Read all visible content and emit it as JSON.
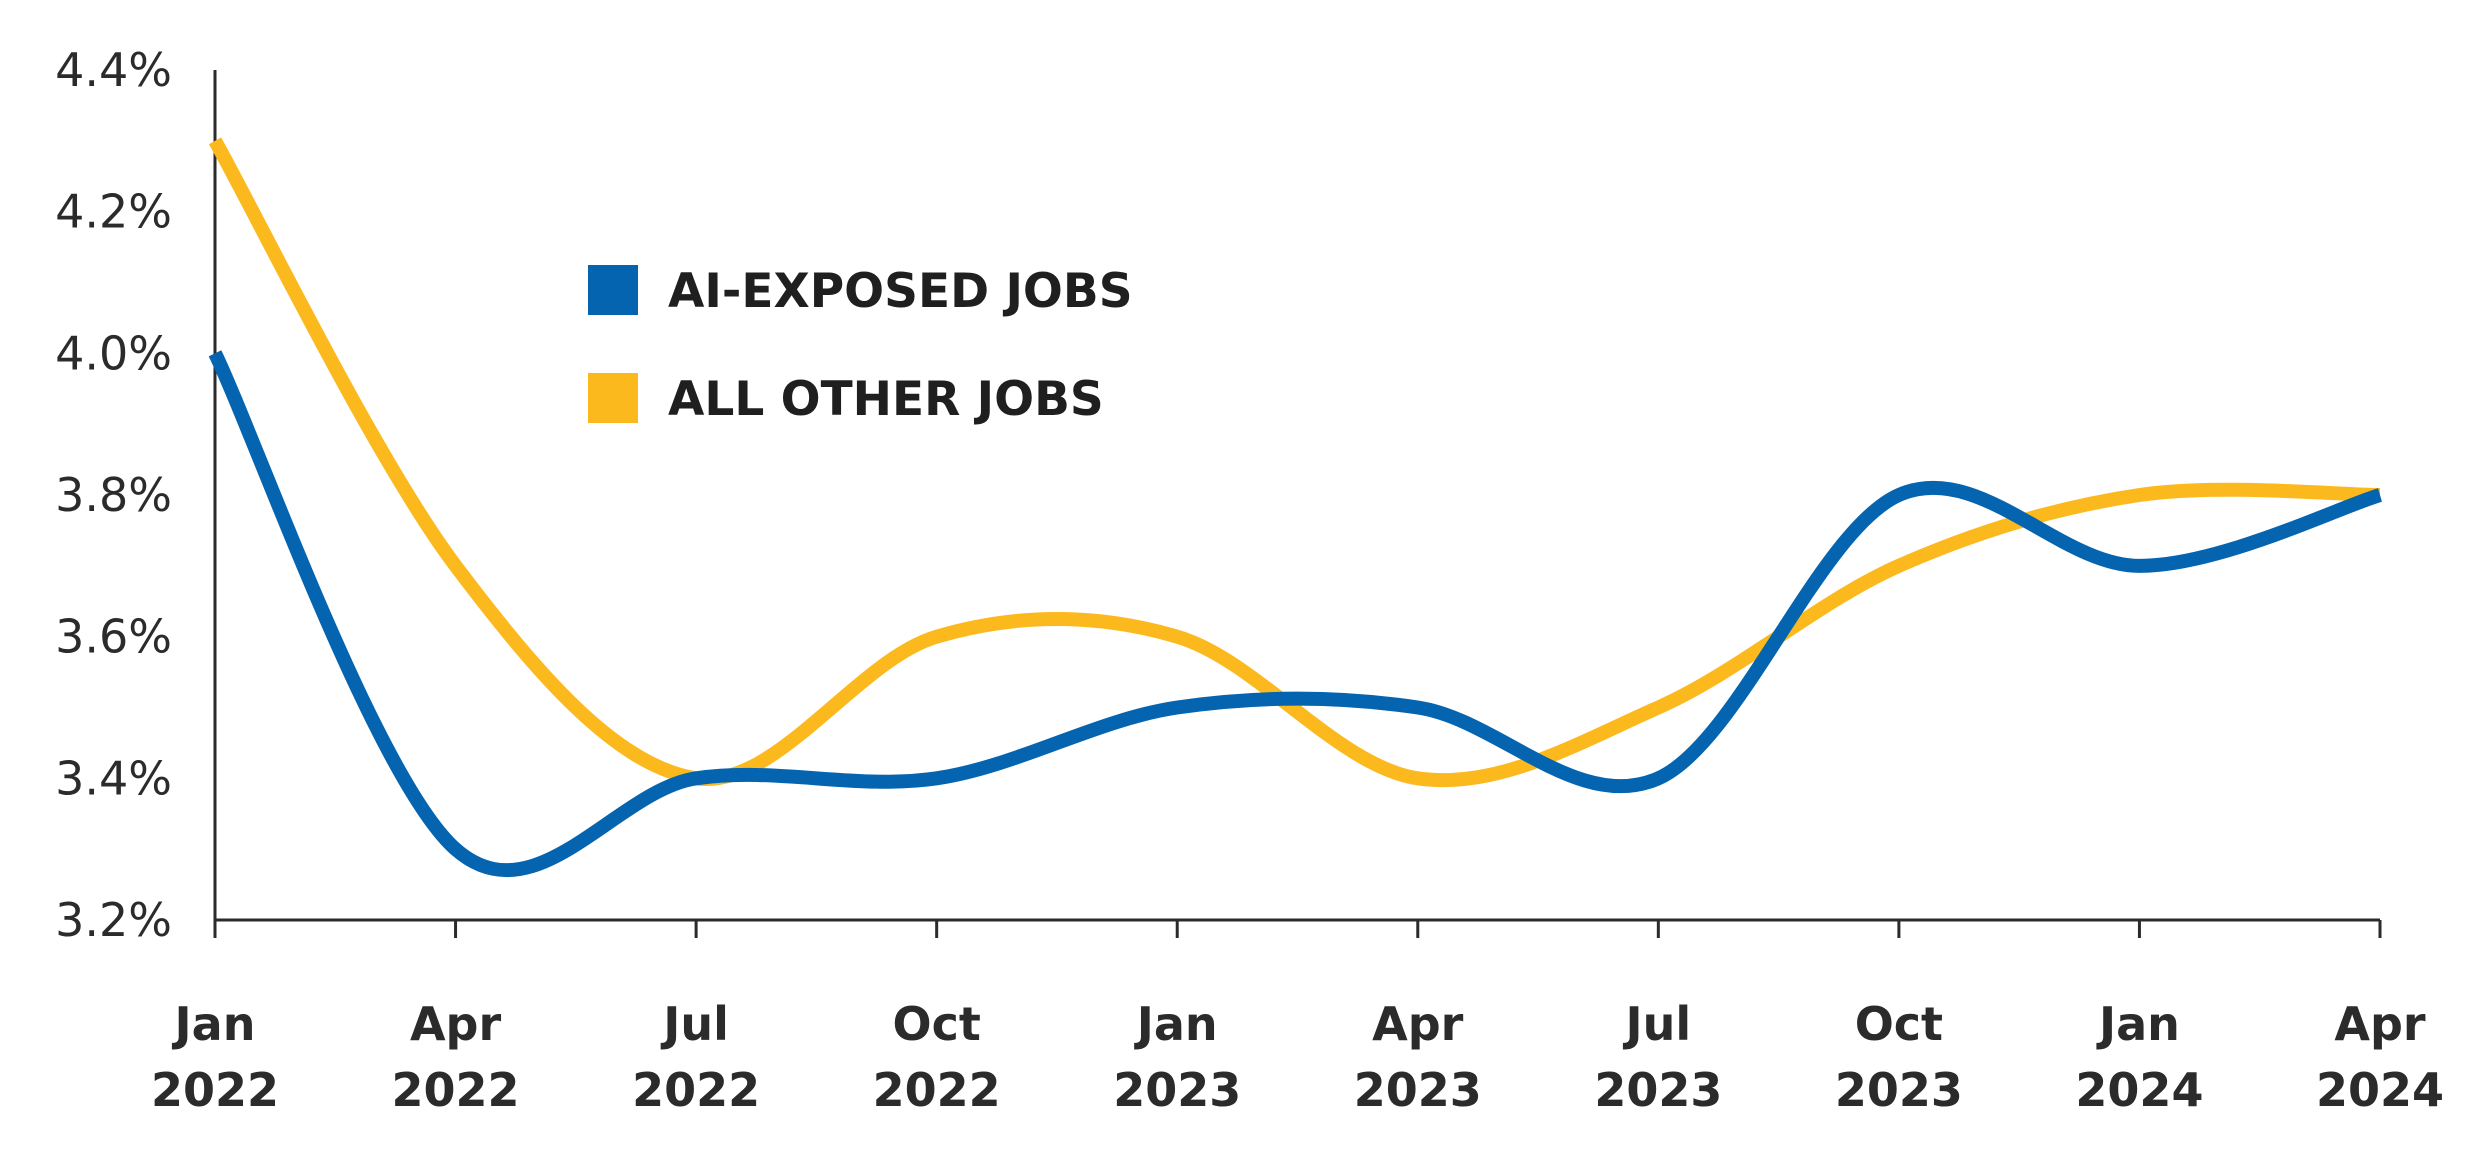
{
  "chart_data": {
    "type": "line",
    "x": [
      "Jan 2022",
      "Apr 2022",
      "Jul 2022",
      "Oct 2022",
      "Jan 2023",
      "Apr 2023",
      "Jul 2023",
      "Oct 2023",
      "Jan 2024",
      "Apr 2024"
    ],
    "x_tick_labels": [
      [
        "Jan",
        "2022"
      ],
      [
        "Apr",
        "2022"
      ],
      [
        "Jul",
        "2022"
      ],
      [
        "Oct",
        "2022"
      ],
      [
        "Jan",
        "2023"
      ],
      [
        "Apr",
        "2023"
      ],
      [
        "Jul",
        "2023"
      ],
      [
        "Oct",
        "2023"
      ],
      [
        "Jan",
        "2024"
      ],
      [
        "Apr",
        "2024"
      ]
    ],
    "series": [
      {
        "name": "AI-EXPOSED JOBS",
        "color": "#0564b0",
        "values": [
          4.0,
          3.3,
          3.4,
          3.4,
          3.5,
          3.5,
          3.4,
          3.8,
          3.7,
          3.8
        ]
      },
      {
        "name": "ALL OTHER JOBS",
        "color": "#fcb91e",
        "values": [
          4.3,
          3.7,
          3.4,
          3.6,
          3.6,
          3.4,
          3.5,
          3.7,
          3.8,
          3.8
        ]
      }
    ],
    "ylim": [
      3.2,
      4.4
    ],
    "y_ticks": [
      3.2,
      3.4,
      3.6,
      3.8,
      4.0,
      4.2,
      4.4
    ],
    "y_tick_labels": [
      "3.2%",
      "3.4%",
      "3.6%",
      "3.8%",
      "4.0%",
      "4.2%",
      "4.4%"
    ],
    "title": "",
    "xlabel": "",
    "ylabel": "",
    "grid": false,
    "legend_position": "top-left"
  }
}
